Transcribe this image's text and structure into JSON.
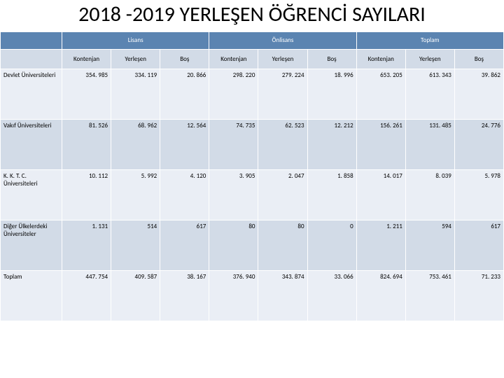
{
  "title": "2018 -2019 YERLEŞEN ÖĞRENCİ SAYILARI",
  "title_fontsize": 30,
  "table": {
    "colors": {
      "category_bg": "#5b84b1",
      "category_fg": "#ffffff",
      "subheader_bg": "#d2dbe7",
      "band_a": "#eaeef5",
      "band_b": "#d2dbe7",
      "border": "#ffffff",
      "text": "#000000"
    },
    "font_size": 9,
    "categories": [
      "Lisans",
      "Önlisans",
      "Toplam"
    ],
    "subheaders": [
      "Kontenjan",
      "Yerleşen",
      "Boş",
      "Kontenjan",
      "Yerleşen",
      "Boş",
      "Kontenjan",
      "Yerleşen",
      "Boş"
    ],
    "rows": [
      {
        "label": "Devlet Üniversiteleri",
        "cells": [
          "354. 985",
          "334. 119",
          "20. 866",
          "298. 220",
          "279. 224",
          "18. 996",
          "653. 205",
          "613. 343",
          "39. 862"
        ]
      },
      {
        "label": "Vakıf Üniversiteleri",
        "cells": [
          "81. 526",
          "68. 962",
          "12. 564",
          "74. 735",
          "62. 523",
          "12. 212",
          "156. 261",
          "131. 485",
          "24. 776"
        ]
      },
      {
        "label": "K. K. T. C. Üniversiteleri",
        "cells": [
          "10. 112",
          "5. 992",
          "4. 120",
          "3. 905",
          "2. 047",
          "1. 858",
          "14. 017",
          "8. 039",
          "5. 978"
        ]
      },
      {
        "label": "Diğer Ülkelerdeki Üniversiteler",
        "cells": [
          "1. 131",
          "514",
          "617",
          "80",
          "80",
          "0",
          "1. 211",
          "594",
          "617"
        ]
      },
      {
        "label": "Toplam",
        "cells": [
          "447. 754",
          "409. 587",
          "38. 167",
          "376. 940",
          "343. 874",
          "33. 066",
          "824. 694",
          "753. 461",
          "71. 233"
        ]
      }
    ]
  }
}
